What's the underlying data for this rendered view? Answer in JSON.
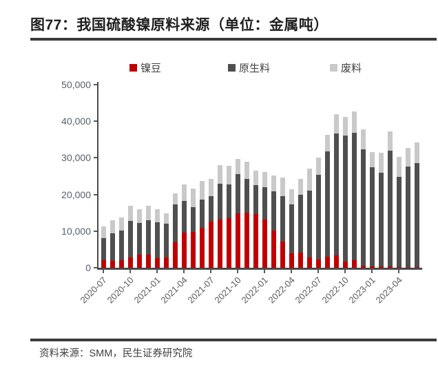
{
  "title": "图77：我国硫酸镍原料来源（单位：金属吨）",
  "footer": {
    "source": "资料来源：SMM，民生证券研究院"
  },
  "colors": {
    "nickel_beans": "#c00000",
    "primary_material": "#4f4f4f",
    "scrap": "#c9c9c9",
    "axis": "#4a4a4a",
    "rule": "#3a3a3a",
    "title_text": "#1f1f1f",
    "y_label_text": "#565f6d",
    "x_label_text": "#595959"
  },
  "chart_data": {
    "type": "bar",
    "stacked": true,
    "title": "我国硫酸镍原料来源",
    "unit": "金属吨",
    "grid": false,
    "legend_position": "top",
    "ylim": [
      0,
      50000
    ],
    "y_ticks": [
      0,
      10000,
      20000,
      30000,
      40000,
      50000
    ],
    "y_tick_labels": [
      "0",
      "10,000",
      "20,000",
      "30,000",
      "40,000",
      "50,000"
    ],
    "x_tick_every": 3,
    "x_tick_labels": [
      "2020-07",
      "2020-10",
      "2021-01",
      "2021-04",
      "2021-07",
      "2021-10",
      "2022-01",
      "2022-04",
      "2022-07",
      "2022-10",
      "2023-01",
      "2023-04"
    ],
    "categories": [
      "2020-07",
      "2020-08",
      "2020-09",
      "2020-10",
      "2020-11",
      "2020-12",
      "2021-01",
      "2021-02",
      "2021-03",
      "2021-04",
      "2021-05",
      "2021-06",
      "2021-07",
      "2021-08",
      "2021-09",
      "2021-10",
      "2021-11",
      "2021-12",
      "2022-01",
      "2022-02",
      "2022-03",
      "2022-04",
      "2022-05",
      "2022-06",
      "2022-07",
      "2022-08",
      "2022-09",
      "2022-10",
      "2022-11",
      "2022-12",
      "2023-01",
      "2023-02",
      "2023-03",
      "2023-04",
      "2023-05",
      "2023-06"
    ],
    "series": [
      {
        "name": "镍豆",
        "color": "#c00000",
        "values": [
          2000,
          1900,
          2100,
          2800,
          3500,
          3500,
          2700,
          2900,
          7000,
          9600,
          9700,
          10900,
          12600,
          13200,
          13600,
          14800,
          15100,
          14600,
          13100,
          10100,
          7100,
          3900,
          4200,
          2900,
          2200,
          3000,
          3400,
          1600,
          2000,
          500,
          300,
          300,
          300,
          200,
          200,
          200
        ]
      },
      {
        "name": "原生料",
        "color": "#4f4f4f",
        "values": [
          6100,
          7500,
          8000,
          9900,
          8700,
          9500,
          9700,
          9100,
          10300,
          8600,
          6900,
          7700,
          6900,
          9800,
          9200,
          10800,
          9200,
          8000,
          8900,
          10800,
          12400,
          13400,
          15700,
          18200,
          23100,
          28700,
          33300,
          34500,
          34800,
          31800,
          27100,
          25700,
          31700,
          24700,
          27400,
          28300
        ]
      },
      {
        "name": "废料",
        "color": "#c9c9c9",
        "values": [
          3100,
          3600,
          3600,
          4300,
          3700,
          4000,
          3500,
          2900,
          3000,
          4600,
          5000,
          5100,
          4800,
          5000,
          5100,
          4100,
          4600,
          3900,
          4100,
          4300,
          5100,
          4200,
          4300,
          6000,
          4700,
          4600,
          5200,
          5000,
          5800,
          5500,
          4100,
          5400,
          5200,
          5300,
          5200,
          5700
        ]
      }
    ]
  }
}
